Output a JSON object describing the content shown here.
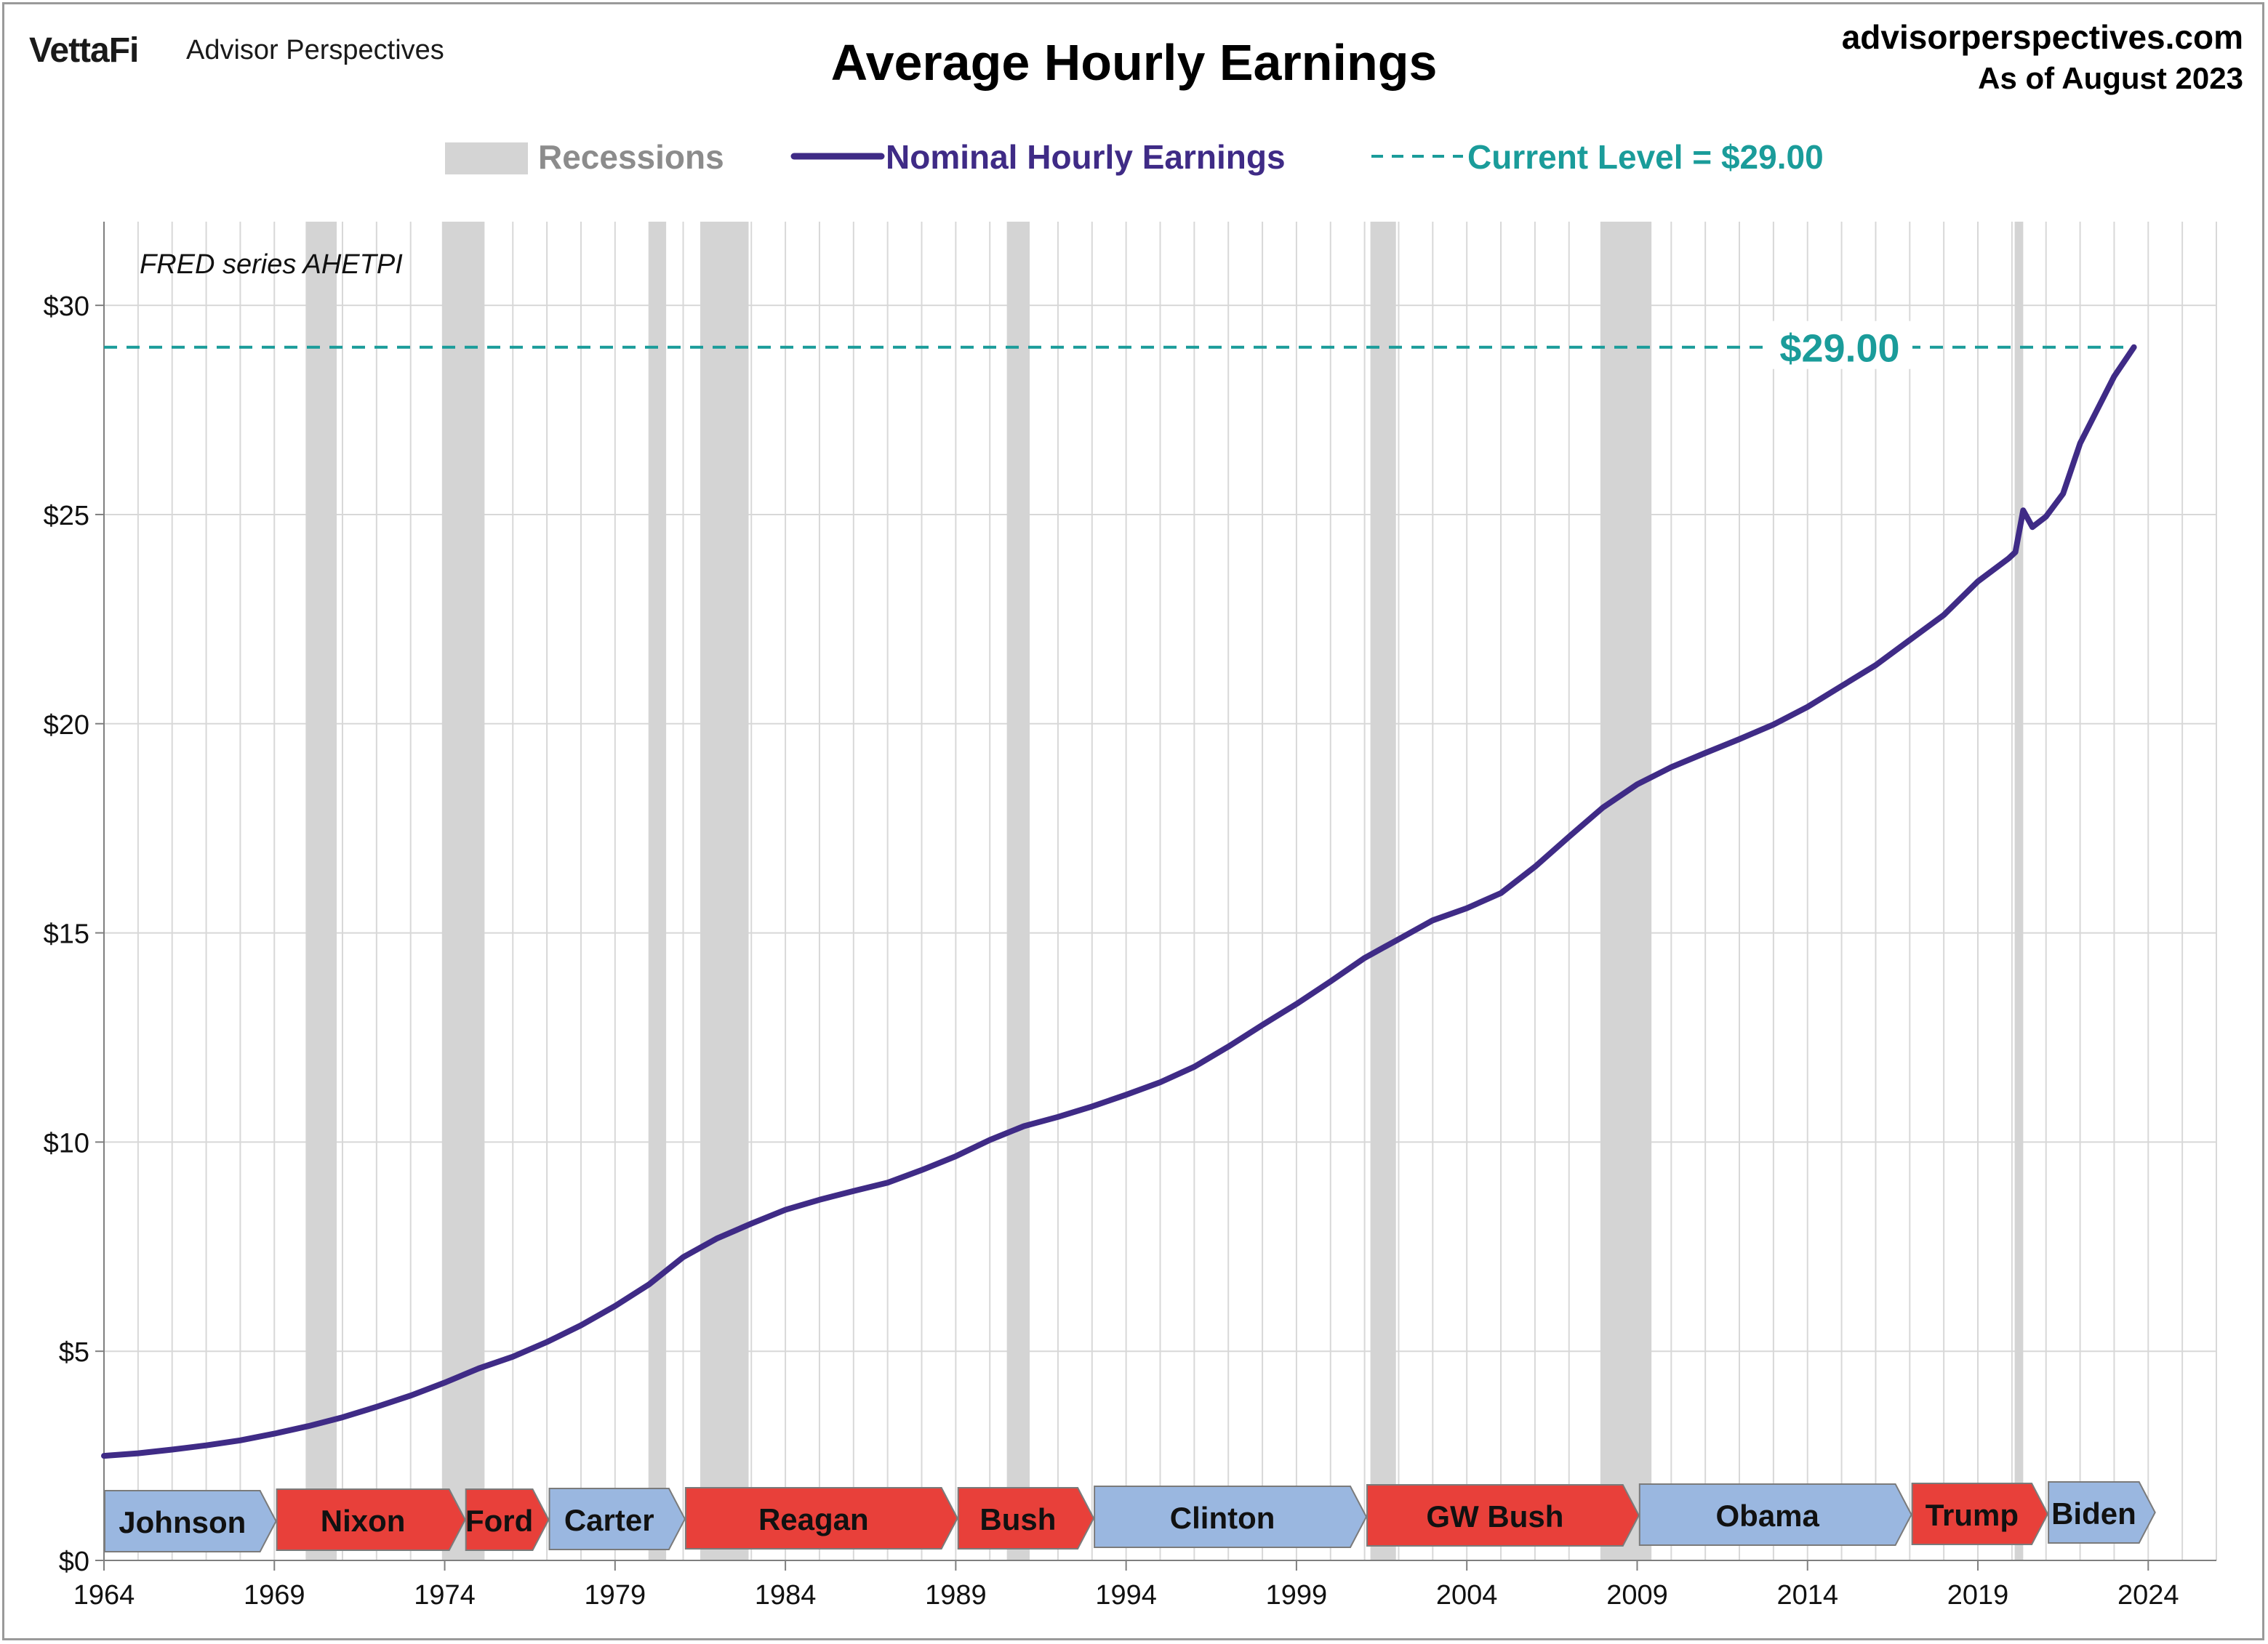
{
  "header": {
    "logo": "VettaFi",
    "brand": "Advisor Perspectives",
    "site": "advisorperspectives.com",
    "as_of": "As of August 2023"
  },
  "annotations": {
    "source_note": "FRED series AHETPI",
    "current_value_label": "$29.00"
  },
  "colors": {
    "line": "#3f2b86",
    "current_level": "#1a9c9a",
    "recession": "#d4d4d4",
    "republican": "#e8403a",
    "democrat": "#9ab7e0",
    "grid": "#d8d8d8"
  },
  "chart_data": {
    "type": "line",
    "title": "Average Hourly Earnings",
    "xlabel": "",
    "ylabel": "",
    "xlim": [
      1964,
      2026
    ],
    "ylim": [
      0,
      32
    ],
    "x_ticks": [
      1964,
      1969,
      1974,
      1979,
      1984,
      1989,
      1994,
      1999,
      2004,
      2009,
      2014,
      2019,
      2024
    ],
    "y_ticks": [
      {
        "value": 0,
        "label": "$0"
      },
      {
        "value": 5,
        "label": "$5"
      },
      {
        "value": 10,
        "label": "$10"
      },
      {
        "value": 15,
        "label": "$15"
      },
      {
        "value": 20,
        "label": "$20"
      },
      {
        "value": 25,
        "label": "$25"
      },
      {
        "value": 30,
        "label": "$30"
      }
    ],
    "grid": true,
    "legend_position": "top",
    "legend": [
      {
        "label": "Recessions",
        "kind": "band"
      },
      {
        "label": "Nominal Hourly Earnings",
        "kind": "line"
      },
      {
        "label": "Current Level = $29.00",
        "kind": "dashed"
      }
    ],
    "series": [
      {
        "name": "Nominal Hourly Earnings",
        "points": [
          [
            1964.0,
            2.5
          ],
          [
            1965.0,
            2.56
          ],
          [
            1966.0,
            2.65
          ],
          [
            1967.0,
            2.75
          ],
          [
            1968.0,
            2.87
          ],
          [
            1969.0,
            3.03
          ],
          [
            1970.0,
            3.21
          ],
          [
            1971.0,
            3.42
          ],
          [
            1972.0,
            3.67
          ],
          [
            1973.0,
            3.94
          ],
          [
            1974.0,
            4.25
          ],
          [
            1975.0,
            4.59
          ],
          [
            1976.0,
            4.87
          ],
          [
            1977.0,
            5.22
          ],
          [
            1978.0,
            5.62
          ],
          [
            1979.0,
            6.08
          ],
          [
            1980.0,
            6.6
          ],
          [
            1981.0,
            7.25
          ],
          [
            1982.0,
            7.7
          ],
          [
            1983.0,
            8.05
          ],
          [
            1984.0,
            8.38
          ],
          [
            1985.0,
            8.62
          ],
          [
            1986.0,
            8.83
          ],
          [
            1987.0,
            9.03
          ],
          [
            1988.0,
            9.33
          ],
          [
            1989.0,
            9.66
          ],
          [
            1990.0,
            10.05
          ],
          [
            1991.0,
            10.38
          ],
          [
            1992.0,
            10.6
          ],
          [
            1993.0,
            10.85
          ],
          [
            1994.0,
            11.13
          ],
          [
            1995.0,
            11.43
          ],
          [
            1996.0,
            11.8
          ],
          [
            1997.0,
            12.28
          ],
          [
            1998.0,
            12.8
          ],
          [
            1999.0,
            13.3
          ],
          [
            2000.0,
            13.84
          ],
          [
            2001.0,
            14.4
          ],
          [
            2002.0,
            14.85
          ],
          [
            2003.0,
            15.3
          ],
          [
            2004.0,
            15.59
          ],
          [
            2005.0,
            15.95
          ],
          [
            2006.0,
            16.58
          ],
          [
            2007.0,
            17.3
          ],
          [
            2008.0,
            18.0
          ],
          [
            2009.0,
            18.55
          ],
          [
            2010.0,
            18.96
          ],
          [
            2011.0,
            19.3
          ],
          [
            2012.0,
            19.63
          ],
          [
            2013.0,
            19.98
          ],
          [
            2014.0,
            20.4
          ],
          [
            2015.0,
            20.9
          ],
          [
            2016.0,
            21.4
          ],
          [
            2017.0,
            22.0
          ],
          [
            2018.0,
            22.6
          ],
          [
            2019.0,
            23.4
          ],
          [
            2019.9,
            23.95
          ],
          [
            2020.1,
            24.1
          ],
          [
            2020.33,
            25.1
          ],
          [
            2020.6,
            24.7
          ],
          [
            2021.0,
            24.95
          ],
          [
            2021.5,
            25.5
          ],
          [
            2022.0,
            26.7
          ],
          [
            2022.5,
            27.5
          ],
          [
            2023.0,
            28.3
          ],
          [
            2023.58,
            29.0
          ]
        ]
      }
    ],
    "current_level": 29.0,
    "recessions": [
      [
        1969.92,
        1970.83
      ],
      [
        1973.92,
        1975.17
      ],
      [
        1980.0,
        1980.5
      ],
      [
        1981.5,
        1982.92
      ],
      [
        1990.5,
        1991.17
      ],
      [
        2001.17,
        2001.92
      ],
      [
        2007.92,
        2009.42
      ],
      [
        2020.08,
        2020.33
      ]
    ],
    "presidents": [
      {
        "name": "Johnson",
        "start": 1964.0,
        "end": 1969.05,
        "party": "D"
      },
      {
        "name": "Nixon",
        "start": 1969.05,
        "end": 1974.6,
        "party": "R"
      },
      {
        "name": "Ford",
        "start": 1974.6,
        "end": 1977.05,
        "party": "R"
      },
      {
        "name": "Carter",
        "start": 1977.05,
        "end": 1981.05,
        "party": "D"
      },
      {
        "name": "Reagan",
        "start": 1981.05,
        "end": 1989.05,
        "party": "R"
      },
      {
        "name": "Bush",
        "start": 1989.05,
        "end": 1993.05,
        "party": "R"
      },
      {
        "name": "Clinton",
        "start": 1993.05,
        "end": 2001.05,
        "party": "D"
      },
      {
        "name": "GW Bush",
        "start": 2001.05,
        "end": 2009.05,
        "party": "R"
      },
      {
        "name": "Obama",
        "start": 2009.05,
        "end": 2017.05,
        "party": "D"
      },
      {
        "name": "Trump",
        "start": 2017.05,
        "end": 2021.05,
        "party": "R"
      },
      {
        "name": "Biden",
        "start": 2021.05,
        "end": 2024.2,
        "party": "D"
      }
    ]
  }
}
